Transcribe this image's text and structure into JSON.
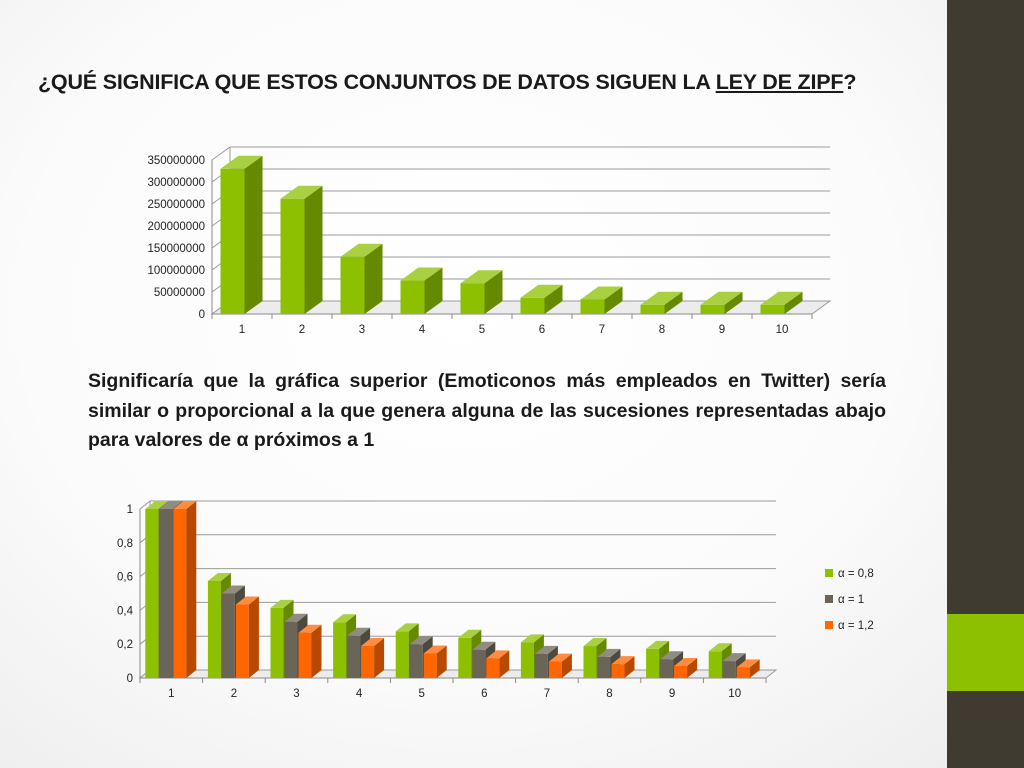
{
  "slide": {
    "title_main": "¿QUÉ SIGNIFICA QUE ESTOS CONJUNTOS DE DATOS SIGUEN LA ",
    "title_law": "LEY DE ZIPF",
    "title_end": "?",
    "body": "Significaría que la gráfica superior (Emoticonos más empleados en Twitter) sería similar o proporcional a la que genera alguna de las sucesiones representadas abajo para valores de α próximos a 1"
  },
  "colors": {
    "green": "#8cc000",
    "gray": "#6b6558",
    "orange": "#ff6600",
    "sidebar": "#3f3b30"
  },
  "chart_data": [
    {
      "type": "bar",
      "title": "",
      "categories": [
        "1",
        "2",
        "3",
        "4",
        "5",
        "6",
        "7",
        "8",
        "9",
        "10"
      ],
      "series": [
        {
          "color": "#8cc000",
          "values": [
            330000000,
            262000000,
            130000000,
            76000000,
            70000000,
            37000000,
            33000000,
            21000000,
            21000000,
            21000000
          ]
        }
      ],
      "ylim": [
        0,
        350000000
      ],
      "yticks": [
        0,
        50000000,
        100000000,
        150000000,
        200000000,
        250000000,
        300000000,
        350000000
      ],
      "ytick_labels": [
        "0",
        "50000000",
        "100000000",
        "150000000",
        "200000000",
        "250000000",
        "300000000",
        "350000000"
      ],
      "grid": true,
      "legend": "none"
    },
    {
      "type": "bar",
      "title": "",
      "categories": [
        "1",
        "2",
        "3",
        "4",
        "5",
        "6",
        "7",
        "8",
        "9",
        "10"
      ],
      "series": [
        {
          "name": "α = 0,8",
          "color": "#8cc000",
          "values": [
            1,
            0.574,
            0.415,
            0.33,
            0.276,
            0.238,
            0.211,
            0.189,
            0.172,
            0.158
          ]
        },
        {
          "name": "α = 1",
          "color": "#6b6558",
          "values": [
            1,
            0.5,
            0.333,
            0.25,
            0.2,
            0.167,
            0.143,
            0.125,
            0.111,
            0.1
          ]
        },
        {
          "name": "α = 1,2",
          "color": "#ff6600",
          "values": [
            1,
            0.435,
            0.268,
            0.189,
            0.145,
            0.116,
            0.097,
            0.082,
            0.071,
            0.063
          ]
        }
      ],
      "ylim": [
        0,
        1
      ],
      "yticks": [
        0,
        0.2,
        0.4,
        0.6,
        0.8,
        1
      ],
      "ytick_labels": [
        "0",
        "0,2",
        "0,4",
        "0,6",
        "0,8",
        "1"
      ],
      "grid": true,
      "legend": "right"
    }
  ]
}
